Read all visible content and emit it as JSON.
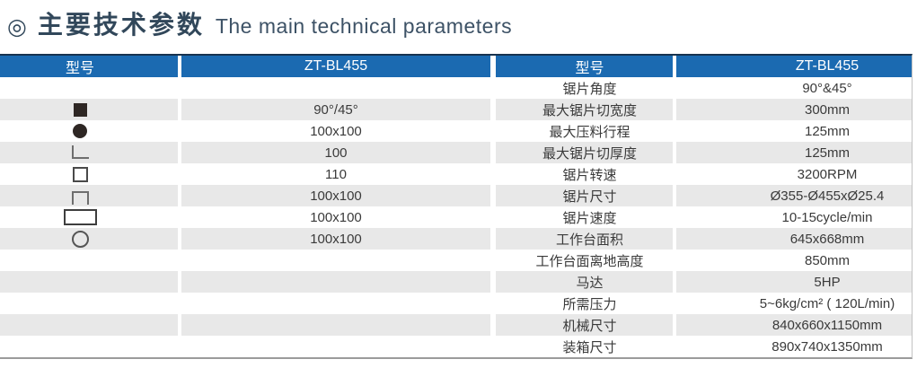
{
  "title": {
    "bullet": "◎",
    "zh": "主要技术参数",
    "en": "The main technical parameters"
  },
  "colors": {
    "header_blue": "#1b6ab1",
    "stripe_gray": "#e8e8e8",
    "title_slate": "#31475a",
    "table_top_border": "#17334f",
    "table_bottom_border": "#9b9b9b",
    "cell_text": "#3a3a3a"
  },
  "table": {
    "header": [
      "型号",
      "ZT-BL455",
      "型号",
      "ZT-BL455"
    ],
    "rows": [
      {
        "shape": "",
        "left_value": "",
        "label": "锯片角度",
        "value": "90°&45°"
      },
      {
        "shape": "square-filled",
        "left_value": "90°/45°",
        "label": "最大锯片切宽度",
        "value": "300mm"
      },
      {
        "shape": "circle-filled",
        "left_value": "100x100",
        "label": "最大压料行程",
        "value": "125mm"
      },
      {
        "shape": "angle",
        "left_value": "100",
        "label": "最大锯片切厚度",
        "value": "125mm"
      },
      {
        "shape": "square-outline",
        "left_value": "110",
        "label": "锯片转速",
        "value": "3200RPM"
      },
      {
        "shape": "channel",
        "left_value": "100x100",
        "label": "锯片尺寸",
        "value": "Ø355-Ø455xØ25.4"
      },
      {
        "shape": "rect-outline",
        "left_value": "100x100",
        "label": "锯片速度",
        "value": "10-15cycle/min"
      },
      {
        "shape": "circle-outline",
        "left_value": "100x100",
        "label": "工作台面积",
        "value": "645x668mm"
      },
      {
        "shape": "",
        "left_value": "",
        "label": "工作台面离地高度",
        "value": "850mm"
      },
      {
        "shape": "",
        "left_value": "",
        "label": "马达",
        "value": "5HP"
      },
      {
        "shape": "",
        "left_value": "",
        "label": "所需压力",
        "value": "5~6kg/cm² ( 120L/min)"
      },
      {
        "shape": "",
        "left_value": "",
        "label": "机械尺寸",
        "value": "840x660x1150mm"
      },
      {
        "shape": "",
        "left_value": "",
        "label": "装箱尺寸",
        "value": "890x740x1350mm"
      }
    ]
  }
}
